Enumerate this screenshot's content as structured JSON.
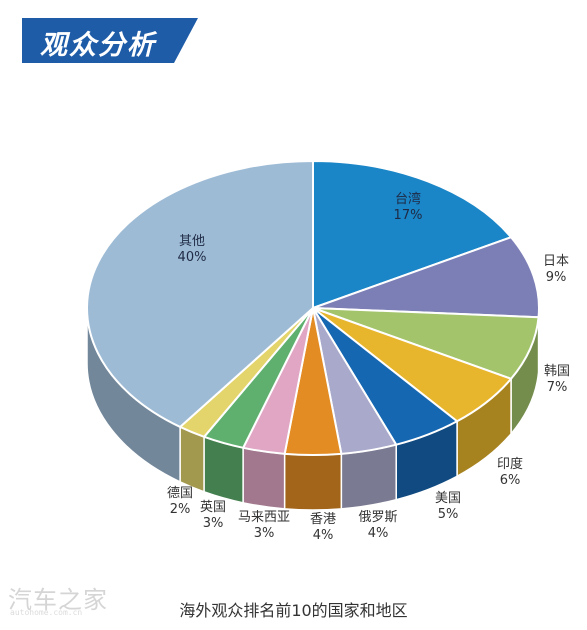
{
  "header": {
    "title": "观众分析",
    "color": "#1f5ca8"
  },
  "caption": "海外观众排名前10的国家和地区",
  "watermark": {
    "text": "汽车之家",
    "url": "autohome.com.cn"
  },
  "chart_data": {
    "type": "pie",
    "title": "",
    "categories": [
      "台湾",
      "日本",
      "韩国",
      "印度",
      "美国",
      "俄罗斯",
      "香港",
      "马来西亚",
      "英国",
      "德国",
      "其他"
    ],
    "values": [
      17,
      9,
      7,
      6,
      5,
      4,
      4,
      3,
      3,
      2,
      40
    ],
    "value_labels": [
      "17%",
      "9%",
      "7%",
      "6%",
      "5%",
      "4%",
      "4%",
      "3%",
      "3%",
      "2%",
      "40%"
    ],
    "colors": [
      "#1a85c7",
      "#7c7fb6",
      "#a3c46a",
      "#e8b62d",
      "#1667b2",
      "#a9a9cc",
      "#e38c24",
      "#e0a6c4",
      "#5fb06e",
      "#e3d46c",
      "#9ebbd6"
    ],
    "legend": "none",
    "style": "3d"
  }
}
